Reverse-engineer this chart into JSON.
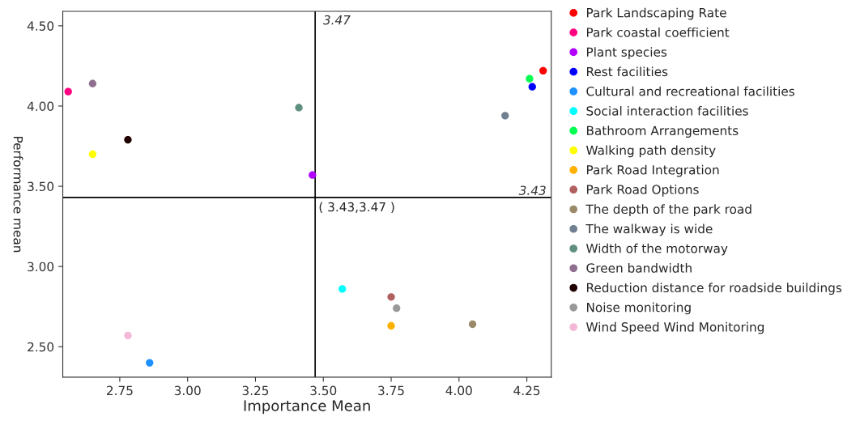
{
  "chart_data": {
    "type": "scatter",
    "xlabel": "Importance Mean",
    "ylabel": "Performance mean",
    "xlim": [
      2.54,
      4.34
    ],
    "ylim": [
      2.31,
      4.59
    ],
    "xticks": [
      {
        "value": 2.75,
        "label": "2.75"
      },
      {
        "value": 3.0,
        "label": "3.00"
      },
      {
        "value": 3.25,
        "label": "3.25"
      },
      {
        "value": 3.5,
        "label": "3.50"
      },
      {
        "value": 3.75,
        "label": "3.75"
      },
      {
        "value": 4.0,
        "label": "4.00"
      },
      {
        "value": 4.25,
        "label": "4.25"
      }
    ],
    "yticks": [
      {
        "value": 2.5,
        "label": "2.50"
      },
      {
        "value": 3.0,
        "label": "3.00"
      },
      {
        "value": 3.5,
        "label": "3.50"
      },
      {
        "value": 4.0,
        "label": "4.00"
      },
      {
        "value": 4.5,
        "label": "4.50"
      }
    ],
    "grid": false,
    "legend": "right",
    "marker": "circle",
    "ref_lines": [
      {
        "axis": "x",
        "value": 3.47,
        "label": "3.47",
        "color": "#000000"
      },
      {
        "axis": "y",
        "value": 3.43,
        "label": "3.43",
        "color": "#000000"
      }
    ],
    "annotations": [
      {
        "text": "( 3.43,3.47 )",
        "x": 3.47,
        "y": 3.43
      }
    ],
    "series": [
      {
        "name": "Park Landscaping Rate",
        "color": "#ff0000",
        "x": [
          4.31
        ],
        "values": [
          4.22
        ]
      },
      {
        "name": "Park coastal coefficient",
        "color": "#ff0080",
        "x": [
          2.56
        ],
        "values": [
          4.09
        ]
      },
      {
        "name": "Plant species",
        "color": "#b000ff",
        "x": [
          3.46
        ],
        "values": [
          3.57
        ]
      },
      {
        "name": "Rest facilities",
        "color": "#0000ff",
        "x": [
          4.27
        ],
        "values": [
          4.12
        ]
      },
      {
        "name": "Cultural and recreational facilities",
        "color": "#1e90ff",
        "x": [
          2.86
        ],
        "values": [
          2.4
        ]
      },
      {
        "name": "Social interaction facilities",
        "color": "#00ffff",
        "x": [
          3.57
        ],
        "values": [
          2.86
        ]
      },
      {
        "name": "Bathroom Arrangements",
        "color": "#00ff50",
        "x": [
          4.26
        ],
        "values": [
          4.17
        ]
      },
      {
        "name": "Walking path density",
        "color": "#ffff00",
        "x": [
          2.65
        ],
        "values": [
          3.7
        ]
      },
      {
        "name": "Park Road Integration",
        "color": "#ffb000",
        "x": [
          3.75
        ],
        "values": [
          2.63
        ]
      },
      {
        "name": "Park Road Options",
        "color": "#b06060",
        "x": [
          3.75
        ],
        "values": [
          2.81
        ]
      },
      {
        "name": "The depth of the park road",
        "color": "#9a8a6a",
        "x": [
          4.05
        ],
        "values": [
          2.64
        ]
      },
      {
        "name": "The walkway is wide",
        "color": "#708090",
        "x": [
          4.17
        ],
        "values": [
          3.94
        ]
      },
      {
        "name": "Width of the motorway",
        "color": "#5f8f7f",
        "x": [
          3.41
        ],
        "values": [
          3.99
        ]
      },
      {
        "name": "Green bandwidth",
        "color": "#8f6f8f",
        "x": [
          2.65
        ],
        "values": [
          4.14
        ]
      },
      {
        "name": "Reduction distance for roadside buildings",
        "color": "#200000",
        "x": [
          2.78
        ],
        "values": [
          3.79
        ]
      },
      {
        "name": "Noise monitoring",
        "color": "#999999",
        "x": [
          3.77
        ],
        "values": [
          2.74
        ]
      },
      {
        "name": "Wind Speed Wind Monitoring",
        "color": "#f4b8d8",
        "x": [
          2.78
        ],
        "values": [
          2.57
        ]
      }
    ]
  }
}
